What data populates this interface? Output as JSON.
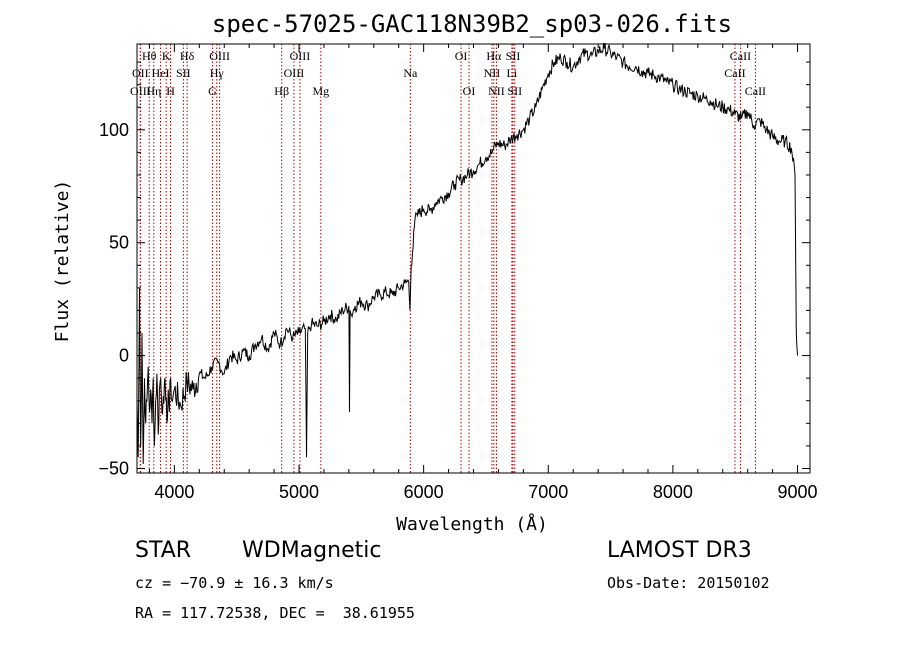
{
  "chart_data": {
    "type": "line",
    "title": "spec-57025-GAC118N39B2_sp03-026.fits",
    "xlabel": "Wavelength (Å)",
    "ylabel": "Flux (relative)",
    "xlim": [
      3700,
      9100
    ],
    "ylim": [
      -52,
      138
    ],
    "xticks": [
      4000,
      5000,
      6000,
      7000,
      8000,
      9000
    ],
    "yticks": [
      -50,
      0,
      50,
      100
    ],
    "series": [
      {
        "name": "flux",
        "x": [
          3700,
          3710,
          3720,
          3730,
          3740,
          3750,
          3760,
          3770,
          3780,
          3790,
          3800,
          3810,
          3820,
          3830,
          3840,
          3850,
          3860,
          3870,
          3880,
          3890,
          3900,
          3910,
          3920,
          3930,
          3940,
          3950,
          3960,
          3970,
          3980,
          3990,
          4000,
          4050,
          4100,
          4150,
          4200,
          4250,
          4300,
          4350,
          4400,
          4450,
          4500,
          4550,
          4600,
          4650,
          4700,
          4750,
          4800,
          4850,
          4900,
          4950,
          5000,
          5050,
          5060,
          5070,
          5080,
          5100,
          5150,
          5200,
          5250,
          5300,
          5350,
          5400,
          5405,
          5410,
          5420,
          5450,
          5500,
          5550,
          5600,
          5650,
          5700,
          5750,
          5800,
          5850,
          5880,
          5890,
          5895,
          5900,
          5910,
          5920,
          5930,
          5950,
          6000,
          6050,
          6100,
          6150,
          6200,
          6250,
          6300,
          6350,
          6400,
          6450,
          6500,
          6550,
          6562,
          6600,
          6650,
          6700,
          6750,
          6800,
          6850,
          6900,
          6950,
          7000,
          7050,
          7100,
          7150,
          7200,
          7250,
          7300,
          7350,
          7400,
          7450,
          7500,
          7550,
          7600,
          7650,
          7700,
          7750,
          7800,
          7850,
          7900,
          7950,
          8000,
          8050,
          8100,
          8150,
          8200,
          8250,
          8300,
          8350,
          8400,
          8450,
          8500,
          8550,
          8600,
          8650,
          8700,
          8750,
          8800,
          8850,
          8900,
          8950,
          8980,
          8990,
          9000
        ],
        "y": [
          -20,
          -45,
          30,
          -40,
          10,
          -48,
          -10,
          -30,
          -20,
          -5,
          -25,
          -15,
          -30,
          -10,
          -40,
          -20,
          -8,
          -35,
          -15,
          -10,
          -25,
          -18,
          -12,
          -20,
          -30,
          -15,
          -25,
          -10,
          -20,
          -18,
          -15,
          -22,
          -12,
          -15,
          -8,
          -10,
          -5,
          -3,
          -8,
          0,
          -2,
          2,
          0,
          5,
          8,
          3,
          10,
          5,
          12,
          8,
          10,
          12,
          -45,
          10,
          12,
          14,
          13,
          15,
          18,
          16,
          20,
          22,
          -25,
          20,
          18,
          22,
          24,
          22,
          26,
          27,
          28,
          27,
          30,
          32,
          33,
          20,
          30,
          40,
          45,
          55,
          60,
          62,
          65,
          64,
          68,
          70,
          72,
          76,
          78,
          80,
          82,
          85,
          88,
          90,
          92,
          94,
          93,
          96,
          98,
          100,
          105,
          110,
          118,
          125,
          130,
          132,
          130,
          128,
          132,
          134,
          133,
          135,
          136,
          134,
          132,
          130,
          128,
          128,
          126,
          125,
          124,
          123,
          121,
          120,
          118,
          117,
          116,
          115,
          114,
          113,
          111,
          110,
          109,
          107,
          105,
          108,
          102,
          104,
          100,
          97,
          95,
          95,
          92,
          80,
          10,
          0
        ]
      }
    ],
    "emission_lines": [
      {
        "label": "Hθ",
        "wl": 3798,
        "row": 1
      },
      {
        "label": "OII",
        "wl": 3727,
        "row": 2
      },
      {
        "label": "OIII",
        "wl": 3727,
        "row": 3
      },
      {
        "label": "K",
        "wl": 3934,
        "row": 1
      },
      {
        "label": "HeI",
        "wl": 3889,
        "row": 2
      },
      {
        "label": "Hη",
        "wl": 3835,
        "row": 3
      },
      {
        "label": "H",
        "wl": 3969,
        "row": 3
      },
      {
        "label": "Hδ",
        "wl": 4102,
        "row": 1
      },
      {
        "label": "SII",
        "wl": 4072,
        "row": 2
      },
      {
        "label": "OIII",
        "wl": 4363,
        "row": 1
      },
      {
        "label": "Hγ",
        "wl": 4340,
        "row": 2
      },
      {
        "label": "G",
        "wl": 4305,
        "row": 3
      },
      {
        "label": "OIII",
        "wl": 5007,
        "row": 1
      },
      {
        "label": "OIII",
        "wl": 4959,
        "row": 2
      },
      {
        "label": "Hβ",
        "wl": 4861,
        "row": 3
      },
      {
        "label": "Mg",
        "wl": 5175,
        "row": 3
      },
      {
        "label": "Na",
        "wl": 5893,
        "row": 2
      },
      {
        "label": "OI",
        "wl": 6300,
        "row": 1
      },
      {
        "label": "OI",
        "wl": 6364,
        "row": 3
      },
      {
        "label": "Hα",
        "wl": 6563,
        "row": 1
      },
      {
        "label": "NII",
        "wl": 6548,
        "row": 2
      },
      {
        "label": "NII",
        "wl": 6584,
        "row": 3
      },
      {
        "label": "SII",
        "wl": 6717,
        "row": 1
      },
      {
        "label": "Li",
        "wl": 6708,
        "row": 2
      },
      {
        "label": "SII",
        "wl": 6731,
        "row": 3
      },
      {
        "label": "CaII",
        "wl": 8542,
        "row": 1
      },
      {
        "label": "CaII",
        "wl": 8498,
        "row": 2
      },
      {
        "label": "CaII",
        "wl": 8662,
        "row": 3
      }
    ]
  },
  "info": {
    "object_class": "STAR",
    "subclass": "WDMagnetic",
    "survey": "LAMOST DR3",
    "cz": "cz = −70.9 ± 16.3 km/s",
    "obs_date": "Obs-Date: 20150102",
    "coords": "RA = 117.72538, DEC =  38.61955"
  },
  "colors": {
    "line": "#000000",
    "marker": "#b00000"
  }
}
